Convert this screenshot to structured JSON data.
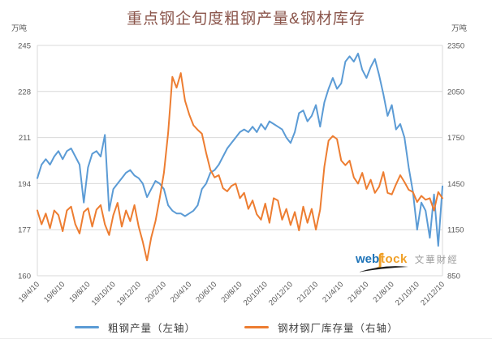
{
  "title": "重点钢企旬度粗钢产量&钢材库存",
  "colors": {
    "blue_series": "#5B9BD5",
    "orange_series": "#ED7D31",
    "grid": "#D9D9D9",
    "axis_text": "#595959",
    "title_text": "#8A544A",
    "legend_text": "#3F3F3F",
    "watermark_blue": "#1F74B8",
    "watermark_gold": "#F0A028",
    "watermark_gray": "#9B9B9B"
  },
  "left_axis": {
    "unit": "万吨",
    "min": 160,
    "max": 245,
    "ticks": [
      245,
      228,
      211,
      194,
      177,
      160
    ]
  },
  "right_axis": {
    "unit": "万吨",
    "min": 850,
    "max": 2350,
    "ticks": [
      2350,
      2050,
      1750,
      1450,
      1150,
      850
    ]
  },
  "legend": [
    {
      "label": "粗钢产量（左轴）",
      "color": "#5B9BD5"
    },
    {
      "label": "钢材钢厂库存量（右轴）",
      "color": "#ED7D31"
    }
  ],
  "watermark": {
    "web": "web",
    "s": "∫",
    "tock": "tock",
    "cjk": "文華財經"
  },
  "chart_data": {
    "type": "line",
    "title": "重点钢企旬度粗钢产量&钢材库存",
    "grid": true,
    "legend_position": "bottom",
    "left_ylim": [
      160,
      245
    ],
    "right_ylim": [
      850,
      2350
    ],
    "x_label_every": 6,
    "x_tick_labels": [
      "19/4/10",
      "19/6/10",
      "19/8/10",
      "19/10/10",
      "19/12/10",
      "20/2/10",
      "20/4/10",
      "20/6/10",
      "20/8/10",
      "20/10/10",
      "20/12/10",
      "21/2/10",
      "21/4/10",
      "21/6/10",
      "21/8/10",
      "21/10/10",
      "21/12/10"
    ],
    "x": [
      "19/4/10",
      "19/4/20",
      "19/4/30",
      "19/5/10",
      "19/5/20",
      "19/5/31",
      "19/6/10",
      "19/6/20",
      "19/6/30",
      "19/7/10",
      "19/7/20",
      "19/7/31",
      "19/8/10",
      "19/8/20",
      "19/8/31",
      "19/9/10",
      "19/9/20",
      "19/9/30",
      "19/10/10",
      "19/10/20",
      "19/10/31",
      "19/11/10",
      "19/11/20",
      "19/11/30",
      "19/12/10",
      "19/12/20",
      "19/12/31",
      "20/1/10",
      "20/1/20",
      "20/1/31",
      "20/2/10",
      "20/2/20",
      "20/2/29",
      "20/3/10",
      "20/3/20",
      "20/3/31",
      "20/4/10",
      "20/4/20",
      "20/4/30",
      "20/5/10",
      "20/5/20",
      "20/5/31",
      "20/6/10",
      "20/6/20",
      "20/6/30",
      "20/7/10",
      "20/7/20",
      "20/7/31",
      "20/8/10",
      "20/8/20",
      "20/8/31",
      "20/9/10",
      "20/9/20",
      "20/9/30",
      "20/10/10",
      "20/10/20",
      "20/10/31",
      "20/11/10",
      "20/11/20",
      "20/11/30",
      "20/12/10",
      "20/12/20",
      "20/12/31",
      "21/1/10",
      "21/1/20",
      "21/1/31",
      "21/2/10",
      "21/2/20",
      "21/2/28",
      "21/3/10",
      "21/3/20",
      "21/3/31",
      "21/4/10",
      "21/4/20",
      "21/4/30",
      "21/5/10",
      "21/5/20",
      "21/5/31",
      "21/6/10",
      "21/6/20",
      "21/6/30",
      "21/7/10",
      "21/7/20",
      "21/7/31",
      "21/8/10",
      "21/8/20",
      "21/8/31",
      "21/9/10",
      "21/9/20",
      "21/9/30",
      "21/10/10",
      "21/10/20",
      "21/10/31",
      "21/11/10",
      "21/11/20",
      "21/11/30",
      "21/12/10"
    ],
    "series": [
      {
        "id": "crude-steel-output",
        "name": "粗钢产量（左轴）",
        "axis": "left",
        "color": "#5B9BD5",
        "values": [
          196,
          201,
          203,
          201,
          204,
          206,
          203,
          206,
          207,
          204,
          201,
          187,
          200,
          205,
          206,
          204,
          212,
          184,
          192,
          194,
          196,
          198,
          199,
          197,
          196,
          194,
          189,
          192,
          195,
          194,
          192,
          186,
          184,
          183,
          183,
          182,
          183,
          184,
          186,
          192,
          194,
          198,
          199,
          201,
          204,
          207,
          209,
          211,
          213,
          214,
          213,
          215,
          213,
          216,
          214,
          217,
          216,
          215,
          214,
          211,
          209,
          213,
          220,
          221,
          217,
          219,
          223,
          215,
          224,
          229,
          233,
          229,
          231,
          239,
          241,
          239,
          242,
          236,
          233,
          237,
          240,
          234,
          227,
          219,
          223,
          214,
          216,
          211,
          200,
          191,
          177,
          187,
          184,
          174,
          190,
          171,
          193
        ]
      },
      {
        "id": "steel-mill-inventory",
        "name": "钢材钢厂库存量（右轴）",
        "axis": "right",
        "color": "#ED7D31",
        "values": [
          1275,
          1185,
          1255,
          1160,
          1275,
          1245,
          1140,
          1275,
          1300,
          1185,
          1125,
          1265,
          1290,
          1170,
          1280,
          1310,
          1185,
          1115,
          1245,
          1325,
          1170,
          1275,
          1205,
          1310,
          1170,
          1070,
          950,
          1100,
          1205,
          1355,
          1520,
          1780,
          2145,
          2075,
          2170,
          1990,
          1900,
          1830,
          1800,
          1775,
          1650,
          1540,
          1490,
          1505,
          1420,
          1400,
          1435,
          1450,
          1355,
          1390,
          1285,
          1340,
          1250,
          1215,
          1320,
          1195,
          1355,
          1340,
          1215,
          1285,
          1180,
          1265,
          1145,
          1300,
          1195,
          1285,
          1150,
          1280,
          1560,
          1730,
          1760,
          1740,
          1600,
          1570,
          1600,
          1490,
          1450,
          1520,
          1415,
          1475,
          1390,
          1430,
          1525,
          1390,
          1380,
          1445,
          1505,
          1460,
          1410,
          1395,
          1330,
          1370,
          1345,
          1355,
          1275,
          1395,
          1355
        ]
      }
    ]
  }
}
